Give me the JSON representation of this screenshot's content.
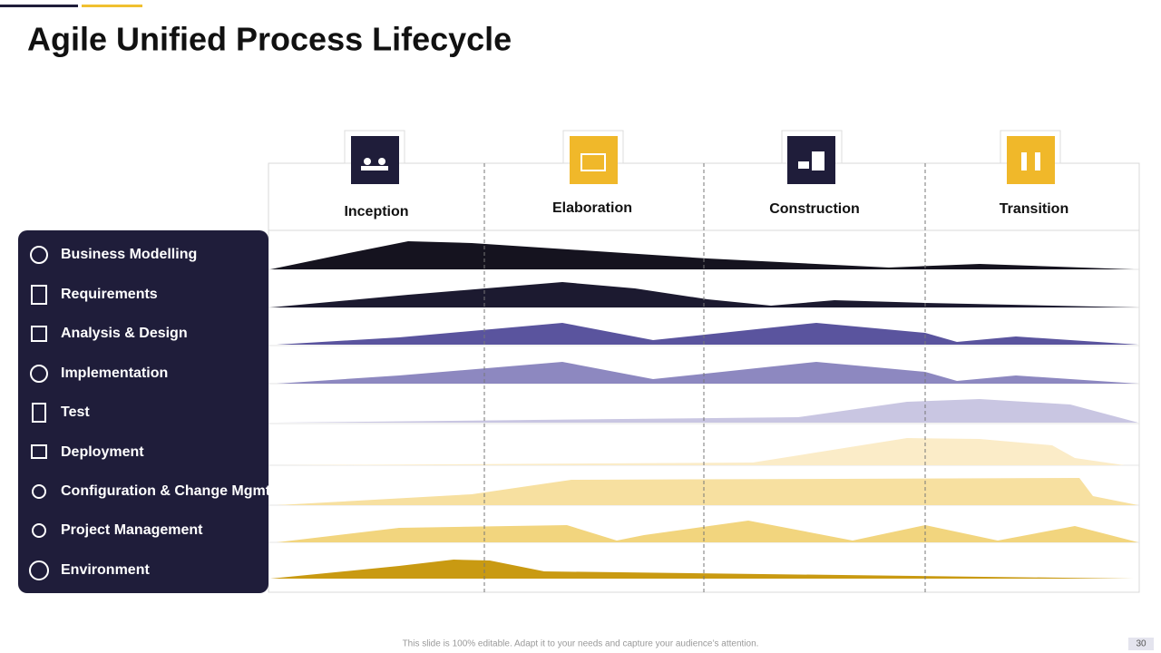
{
  "title": "Agile Unified Process Lifecycle",
  "phases": [
    "Inception",
    "Elaboration",
    "Construction",
    "Transition"
  ],
  "disciplines": [
    "Business Modelling",
    "Requirements",
    "Analysis & Design",
    "Implementation",
    "Test",
    "Deployment",
    "Configuration & Change Mgmt.",
    "Project Management",
    "Environment"
  ],
  "footer": "This slide is 100% editable. Adapt it to your needs and capture your audience’s attention.",
  "page_number": "30"
}
